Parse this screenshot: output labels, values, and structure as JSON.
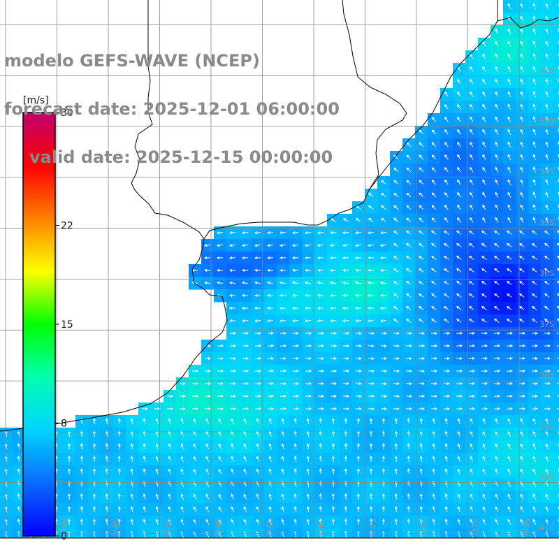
{
  "header": {
    "model_line": "modelo GEFS-WAVE (NCEP)",
    "forecast_line": "forecast date: 2025-12-01 06:00:00",
    "valid_line": "valid date: 2025-12-15 00:00:00"
  },
  "colorbar": {
    "unit": "[m/s]",
    "ticks": [
      "30",
      "22",
      "15",
      "8",
      "0"
    ],
    "tick_values": [
      30,
      22,
      15,
      8,
      0
    ],
    "colors": [
      "#0000ff",
      "#0a6bff",
      "#00d4ff",
      "#00ffb0",
      "#00ff00",
      "#ffff00",
      "#ff8000",
      "#ff0000",
      "#c0006e"
    ]
  },
  "map": {
    "land_color": "#ffffff",
    "grid_color": "#888888",
    "coast_color": "#000000",
    "lat_labels": [
      "32S",
      "33S",
      "34S",
      "35S",
      "36S",
      "37S",
      "38S",
      "39S",
      "40S",
      "41S"
    ],
    "lon_labels": [
      "59W",
      "58W",
      "57W",
      "56W",
      "55W",
      "54W",
      "53W",
      "52W",
      "51W",
      "50W"
    ]
  }
}
